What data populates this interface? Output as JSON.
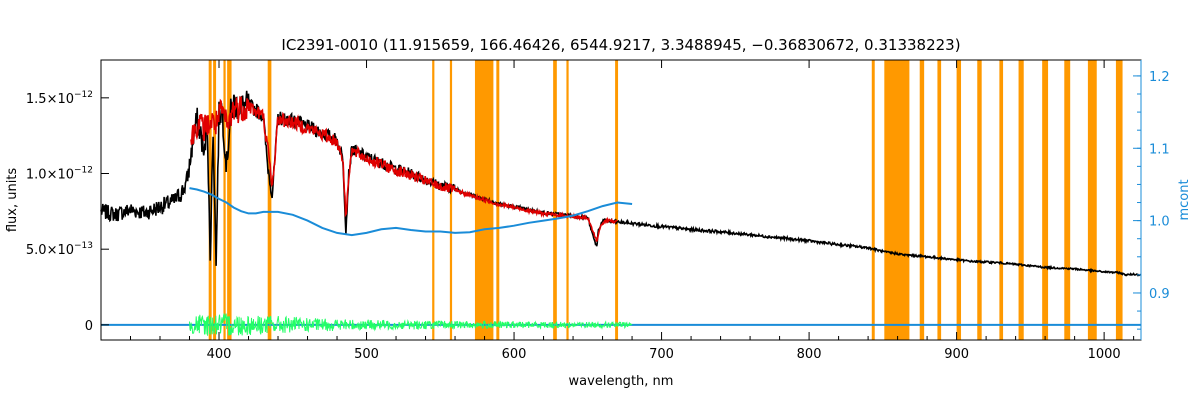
{
  "chart_data": {
    "type": "line",
    "title": "IC2391-0010    (11.915659, 166.46426, 6544.9217, 3.3488945, −0.36830672, 0.31338223)",
    "xlabel": "wavelength, nm",
    "ylabel": "flux, units",
    "y2label": "mcont",
    "xlim": [
      320,
      1025
    ],
    "ylim": [
      -1e-13,
      1.75e-12
    ],
    "y2lim": [
      0.835,
      1.222
    ],
    "grid": false,
    "x_ticks": [
      {
        "value": 400,
        "label": "400"
      },
      {
        "value": 500,
        "label": "500"
      },
      {
        "value": 600,
        "label": "600"
      },
      {
        "value": 700,
        "label": "700"
      },
      {
        "value": 800,
        "label": "800"
      },
      {
        "value": 900,
        "label": "900"
      },
      {
        "value": 1000,
        "label": "1000"
      }
    ],
    "y_ticks": [
      {
        "value": 0,
        "mant": "0",
        "exp": ""
      },
      {
        "value": 5e-13,
        "mant": "5.0×10",
        "exp": "−13"
      },
      {
        "value": 1e-12,
        "mant": "1.0×10",
        "exp": "−12"
      },
      {
        "value": 1.5e-12,
        "mant": "1.5×10",
        "exp": "−12"
      }
    ],
    "y2_ticks": [
      {
        "value": 0.9,
        "label": "0.9"
      },
      {
        "value": 1.0,
        "label": "1.0"
      },
      {
        "value": 1.1,
        "label": "1.1"
      },
      {
        "value": 1.2,
        "label": "1.2"
      }
    ],
    "masked_regions": [
      [
        393.0,
        395.0
      ],
      [
        396.0,
        398.0
      ],
      [
        403.0,
        404.5
      ],
      [
        405.5,
        408.5
      ],
      [
        433.0,
        435.5
      ],
      [
        544.5,
        546.0
      ],
      [
        556.5,
        558.0
      ],
      [
        573.5,
        586.0
      ],
      [
        588.0,
        590.0
      ],
      [
        626.5,
        629.0
      ],
      [
        635.5,
        637.0
      ],
      [
        668.5,
        670.5
      ],
      [
        842.5,
        844.5
      ],
      [
        851.0,
        868.0
      ],
      [
        875.0,
        878.0
      ],
      [
        887.0,
        889.5
      ],
      [
        900.0,
        903.0
      ],
      [
        914.0,
        917.0
      ],
      [
        929.0,
        931.5
      ],
      [
        942.0,
        945.5
      ],
      [
        958.0,
        962.0
      ],
      [
        973.0,
        977.0
      ],
      [
        989.0,
        995.0
      ],
      [
        1008.0,
        1012.5
      ]
    ],
    "series": [
      {
        "color": "#000000",
        "axis": "left",
        "x": [
          320,
          330,
          340,
          350,
          360,
          370,
          375,
          378,
          380,
          382,
          385,
          388,
          390,
          392,
          394,
          396,
          398,
          400,
          402,
          405,
          408,
          410,
          415,
          420,
          425,
          430,
          433,
          436,
          440,
          450,
          460,
          470,
          480,
          484,
          486,
          488,
          490,
          500,
          510,
          520,
          530,
          540,
          550,
          560,
          570,
          580,
          590,
          600,
          610,
          620,
          630,
          640,
          650,
          652,
          655,
          656.3,
          657,
          660,
          670,
          680,
          700,
          720,
          740,
          760,
          780,
          800,
          820,
          840,
          848,
          852,
          860,
          866,
          870,
          880,
          890,
          900,
          910,
          920,
          930,
          940,
          950,
          960,
          970,
          980,
          990,
          1000,
          1010,
          1015,
          1020,
          1025
        ],
        "y": [
          7.5e-13,
          7.3e-13,
          7.6e-13,
          7.4e-13,
          7.8e-13,
          8.2e-13,
          8.8e-13,
          9.4e-13,
          1.05e-12,
          1.2e-12,
          1.35e-12,
          1.25e-12,
          1.1e-12,
          1.38e-12,
          4.2e-13,
          1.3e-12,
          4e-13,
          1.38e-12,
          1.44e-12,
          1.05e-12,
          1.4e-12,
          1.46e-12,
          1.44e-12,
          1.45e-12,
          1.42e-12,
          1.38e-12,
          1.05e-12,
          8.5e-13,
          1.37e-12,
          1.35e-12,
          1.31e-12,
          1.27e-12,
          1.22e-12,
          1.1e-12,
          6.2e-13,
          1e-12,
          1.16e-12,
          1.11e-12,
          1.07e-12,
          1.03e-12,
          1e-12,
          9.6e-13,
          9.2e-13,
          9e-13,
          8.6e-13,
          8.3e-13,
          8e-13,
          7.8e-13,
          7.6e-13,
          7.4e-13,
          7.3e-13,
          7.2e-13,
          7.1e-13,
          6.4e-13,
          5.4e-13,
          5.2e-13,
          6.2e-13,
          6.9e-13,
          6.8e-13,
          6.7e-13,
          6.5e-13,
          6.3e-13,
          6.15e-13,
          5.95e-13,
          5.75e-13,
          5.55e-13,
          5.3e-13,
          5.1e-13,
          4.9e-13,
          4.8e-13,
          4.7e-13,
          4.6e-13,
          4.6e-13,
          4.5e-13,
          4.4e-13,
          4.3e-13,
          4.2e-13,
          4.15e-13,
          4.1e-13,
          4e-13,
          3.9e-13,
          3.8e-13,
          3.75e-13,
          3.7e-13,
          3.6e-13,
          3.5e-13,
          3.45e-13,
          3.3e-13,
          3.35e-13,
          3.3e-13
        ]
      },
      {
        "color": "#e00000",
        "axis": "left",
        "x": [
          381,
          385,
          390,
          394,
          398,
          402,
          406,
          410,
          415,
          420,
          425,
          430,
          434,
          436,
          440,
          450,
          460,
          470,
          480,
          484,
          486,
          488,
          490,
          500,
          510,
          520,
          530,
          540,
          550,
          560,
          570,
          580,
          590,
          600,
          610,
          620,
          630,
          640,
          650,
          655,
          656.3,
          658,
          662,
          670
        ],
        "y": [
          1.22e-12,
          1.33e-12,
          1.3e-12,
          1.34e-12,
          1.33e-12,
          1.41e-12,
          1.3e-12,
          1.44e-12,
          1.43e-12,
          1.45e-12,
          1.41e-12,
          1.38e-12,
          1.1e-12,
          9e-13,
          1.36e-12,
          1.34e-12,
          1.3e-12,
          1.26e-12,
          1.21e-12,
          1.1e-12,
          7e-13,
          1e-12,
          1.15e-12,
          1.1e-12,
          1.06e-12,
          1.02e-12,
          9.9e-13,
          9.5e-13,
          9.15e-13,
          8.9e-13,
          8.55e-13,
          8.25e-13,
          7.95e-13,
          7.75e-13,
          7.55e-13,
          7.35e-13,
          7.25e-13,
          7.15e-13,
          7.05e-13,
          5.8e-13,
          5.5e-13,
          6.4e-13,
          6.9e-13,
          6.8e-13
        ]
      },
      {
        "color": "#1a8cd8",
        "axis": "right",
        "x": [
          380,
          385,
          390,
          395,
          400,
          405,
          410,
          415,
          420,
          425,
          430,
          440,
          450,
          460,
          470,
          480,
          490,
          500,
          510,
          520,
          530,
          540,
          550,
          560,
          570,
          580,
          590,
          600,
          610,
          620,
          630,
          640,
          650,
          660,
          670,
          680
        ],
        "y": [
          1.045,
          1.043,
          1.04,
          1.036,
          1.03,
          1.025,
          1.018,
          1.013,
          1.01,
          1.01,
          1.012,
          1.012,
          1.008,
          1.0,
          0.99,
          0.983,
          0.98,
          0.983,
          0.988,
          0.99,
          0.987,
          0.985,
          0.985,
          0.983,
          0.984,
          0.988,
          0.99,
          0.993,
          0.997,
          1.0,
          1.003,
          1.007,
          1.013,
          1.02,
          1.025,
          1.023
        ]
      },
      {
        "color": "#1a8cd8",
        "axis": "left",
        "x": [
          320,
          1025
        ],
        "y": [
          0,
          0
        ]
      },
      {
        "color": "#22ff66",
        "axis": "left",
        "noise": true,
        "x": [
          380,
          400,
          420,
          440,
          460,
          480,
          500,
          520,
          540,
          560,
          580,
          600,
          620,
          640,
          660,
          680
        ],
        "y": [
          0,
          0,
          0,
          0,
          0,
          0,
          0,
          0,
          0,
          0,
          0,
          0,
          0,
          0,
          0,
          0
        ],
        "amplitude": [
          6e-14,
          8e-14,
          7e-14,
          6e-14,
          4.5e-14,
          4e-14,
          3.5e-14,
          3e-14,
          3e-14,
          2.5e-14,
          2.5e-14,
          2.2e-14,
          2.2e-14,
          2e-14,
          2e-14,
          1.8e-14
        ]
      }
    ]
  }
}
